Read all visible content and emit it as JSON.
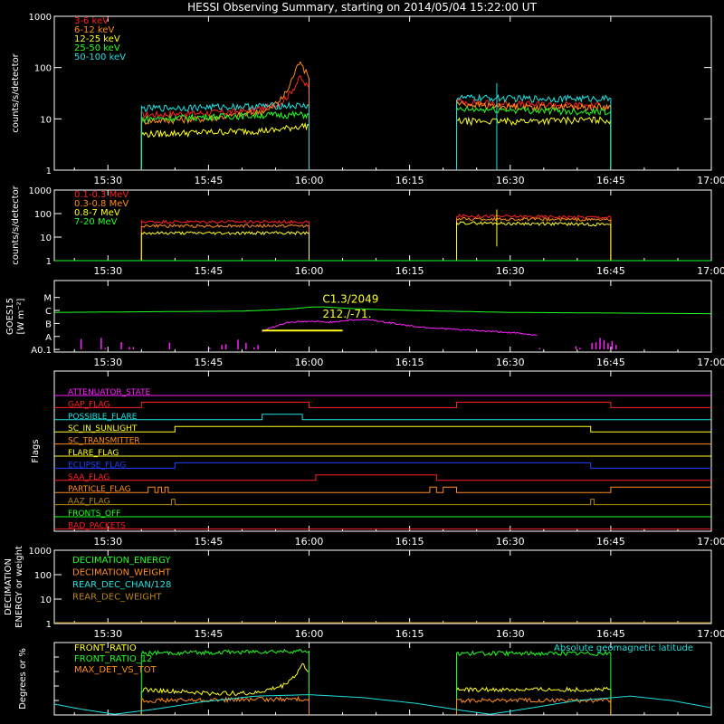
{
  "title": "HESSI Observing Summary, starting on 2014/05/04 15:22:00 UT",
  "time_axis": {
    "start_minutes": 922,
    "end_minutes": 1020,
    "tick_labels": [
      "15:30",
      "15:45",
      "16:00",
      "16:15",
      "16:30",
      "16:45",
      "17:00"
    ],
    "tick_minutes": [
      930,
      945,
      960,
      975,
      990,
      1005,
      1020
    ]
  },
  "chart_data": [
    {
      "id": "panel_lo",
      "type": "line",
      "ylabel": "counts/s/detector",
      "ylim": [
        1,
        1000
      ],
      "log": true,
      "ytick_labels": [
        "1",
        "10",
        "100",
        "1000"
      ],
      "ytick_values": [
        1,
        10,
        100,
        1000
      ],
      "legend_position": "top-left",
      "series": [
        {
          "name": "3-6 keV",
          "color": "#ff2020",
          "segments": [
            [
              [
                935.0,
                12
              ],
              [
                944,
                13
              ],
              [
                950,
                14
              ],
              [
                954,
                17
              ],
              [
                956,
                22
              ],
              [
                957,
                30
              ],
              [
                958,
                45
              ],
              [
                958.7,
                65
              ],
              [
                959.2,
                50
              ],
              [
                960,
                40
              ]
            ],
            [
              [
                982,
                22
              ],
              [
                987,
                20
              ],
              [
                995,
                19
              ],
              [
                1005,
                18
              ]
            ]
          ]
        },
        {
          "name": "6-12 keV",
          "color": "#ff8c1a",
          "segments": [
            [
              [
                935.0,
                9
              ],
              [
                944,
                10
              ],
              [
                950,
                12
              ],
              [
                954,
                15
              ],
              [
                956,
                25
              ],
              [
                957,
                40
              ],
              [
                958,
                85
              ],
              [
                958.7,
                145
              ],
              [
                959.3,
                90
              ],
              [
                960,
                60
              ]
            ],
            [
              [
                982,
                20
              ],
              [
                987,
                18
              ],
              [
                995,
                17
              ],
              [
                1005,
                17
              ]
            ]
          ]
        },
        {
          "name": "12-25 keV",
          "color": "#ffff20",
          "segments": [
            [
              [
                935.0,
                5
              ],
              [
                945,
                5.5
              ],
              [
                955,
                6
              ],
              [
                958,
                7
              ],
              [
                960,
                7.5
              ]
            ],
            [
              [
                982,
                9
              ],
              [
                990,
                9
              ],
              [
                1000,
                9.5
              ],
              [
                1005,
                9.5
              ]
            ]
          ]
        },
        {
          "name": "25-50 keV",
          "color": "#20ff20",
          "segments": [
            [
              [
                935.0,
                10
              ],
              [
                945,
                11
              ],
              [
                955,
                12
              ],
              [
                960,
                12
              ]
            ],
            [
              [
                982,
                15
              ],
              [
                990,
                15
              ],
              [
                1000,
                14
              ],
              [
                1005,
                14
              ]
            ]
          ]
        },
        {
          "name": "50-100 keV",
          "color": "#20e0e0",
          "segments": [
            [
              [
                935.0,
                16
              ],
              [
                945,
                17
              ],
              [
                955,
                18
              ],
              [
                960,
                18
              ]
            ],
            [
              [
                982,
                26
              ],
              [
                990,
                25
              ],
              [
                1000,
                25
              ],
              [
                1005,
                25
              ]
            ]
          ]
        }
      ]
    },
    {
      "id": "panel_hi",
      "type": "line",
      "ylabel": "counts/s/detector",
      "ylim": [
        1,
        1000
      ],
      "log": true,
      "ytick_labels": [
        "1",
        "10",
        "100",
        "1000"
      ],
      "ytick_values": [
        1,
        10,
        100,
        1000
      ],
      "legend_position": "top-left",
      "series": [
        {
          "name": "0.1-0.3 MeV",
          "color": "#ff2020",
          "segments": [
            [
              [
                935.0,
                45
              ],
              [
                960,
                45
              ]
            ],
            [
              [
                982,
                80
              ],
              [
                1005,
                70
              ]
            ]
          ]
        },
        {
          "name": "0.3-0.8 MeV",
          "color": "#ff8c1a",
          "segments": [
            [
              [
                935.0,
                30
              ],
              [
                960,
                30
              ]
            ],
            [
              [
                982,
                60
              ],
              [
                1005,
                55
              ]
            ]
          ]
        },
        {
          "name": "0.8-7 MeV",
          "color": "#ffff20",
          "segments": [
            [
              [
                935.0,
                15
              ],
              [
                960,
                15
              ]
            ],
            [
              [
                982,
                40
              ],
              [
                1005,
                35
              ]
            ]
          ]
        },
        {
          "name": "7-20 MeV",
          "color": "#20ff20",
          "segments": [
            [
              [
                922,
                1
              ],
              [
                1020,
                1
              ]
            ]
          ]
        }
      ]
    },
    {
      "id": "panel_goes",
      "type": "line",
      "ylabel": "GOES15",
      "yunits": "[W m⁻²]",
      "ylim": [
        -0.2,
        5.3
      ],
      "ytick_labels": [
        "A0.1",
        "A",
        "B",
        "C",
        "M"
      ],
      "ytick_values": [
        0,
        1,
        2,
        3,
        4
      ],
      "series": [
        {
          "name": "",
          "color": "#20ff20",
          "segments": [
            [
              [
                922,
                2.85
              ],
              [
                950,
                2.95
              ],
              [
                955,
                3.05
              ],
              [
                958,
                3.15
              ],
              [
                960,
                3.25
              ],
              [
                962,
                3.28
              ],
              [
                966,
                3.15
              ],
              [
                975,
                3.0
              ],
              [
                990,
                2.85
              ],
              [
                1005,
                2.8
              ],
              [
                1020,
                2.75
              ]
            ]
          ]
        },
        {
          "name": "",
          "color": "#ff20ff",
          "segments": [
            [
              [
                953,
                1.4
              ],
              [
                955,
                1.8
              ],
              [
                957,
                2.1
              ],
              [
                960,
                2.15
              ],
              [
                963,
                2.1
              ],
              [
                966,
                2.25
              ],
              [
                969,
                2.3
              ],
              [
                972,
                2.05
              ],
              [
                976,
                1.75
              ],
              [
                980,
                1.6
              ],
              [
                985,
                1.45
              ],
              [
                990,
                1.3
              ],
              [
                994,
                1.1
              ]
            ]
          ]
        }
      ],
      "annotations": [
        {
          "text": "C1.3/2049",
          "x": 962,
          "y": 3.6,
          "color": "#ffff20"
        },
        {
          "text": "212./-71.",
          "x": 962,
          "y": 2.45,
          "color": "#ffff20"
        }
      ],
      "highlight_segment": {
        "x": [
          953,
          965
        ],
        "y": 1.45,
        "color": "#ffff20"
      }
    },
    {
      "id": "panel_flags",
      "type": "line",
      "ylabel": "Flags",
      "series": [
        {
          "name": "ATTENUATOR_STATE",
          "color": "#ff20ff",
          "toggles": []
        },
        {
          "name": "GAP_FLAG",
          "color": "#ff2020",
          "toggles": [
            935.0,
            960,
            982,
            1005
          ]
        },
        {
          "name": "POSSIBLE_FLARE",
          "color": "#20e0e0",
          "toggles": [
            953,
            959
          ]
        },
        {
          "name": "SC_IN_SUNLIGHT",
          "color": "#ffff20",
          "toggles": [
            940,
            1002
          ]
        },
        {
          "name": "SC_TRANSMITTER",
          "color": "#ff8c1a",
          "toggles": []
        },
        {
          "name": "FLARE_FLAG",
          "color": "#ffff20",
          "toggles": []
        },
        {
          "name": "ECLIPSE_FLAG",
          "color": "#2040ff",
          "toggles": [
            940,
            1002
          ]
        },
        {
          "name": "SAA_FLAG",
          "color": "#ff2020",
          "toggles": [
            961,
            979
          ]
        },
        {
          "name": "PARTICLE_FLAG",
          "color": "#ff8c1a",
          "toggles": [
            936,
            937,
            937.5,
            938,
            938.5,
            939,
            978,
            979,
            980,
            982,
            1005
          ]
        },
        {
          "name": "AAZ_FLAG",
          "color": "#b8860b",
          "toggles": [
            939.5,
            940,
            1002,
            1002.5
          ]
        },
        {
          "name": "FRONTS_OFF",
          "color": "#20ff20",
          "toggles": []
        },
        {
          "name": "BAD_PACKETS",
          "color": "#ff2020",
          "toggles": []
        }
      ]
    },
    {
      "id": "panel_decim",
      "type": "line",
      "ylabel": "DECIMATION ENERGY or weight",
      "ylim": [
        1,
        1000
      ],
      "log": true,
      "ytick_labels": [
        "1",
        "10",
        "100",
        "1000"
      ],
      "ytick_values": [
        1,
        10,
        100,
        1000
      ],
      "series": [
        {
          "name": "DECIMATION_ENERGY",
          "color": "#20ff20"
        },
        {
          "name": "DECIMATION_WEIGHT",
          "color": "#ff8c1a"
        },
        {
          "name": "REAR_DEC_CHAN/128",
          "color": "#20e0e0"
        },
        {
          "name": "REAR_DEC_WEIGHT",
          "color": "#b8860b"
        }
      ]
    },
    {
      "id": "panel_ratio",
      "type": "line",
      "ylabel": "Degrees or %",
      "ylim": [
        0,
        100
      ],
      "legend_position": "top-left",
      "right_label": "Absolute geomagnetic latitude",
      "series": [
        {
          "name": "FRONT_RATIO",
          "color": "#ffff20",
          "segments": [
            [
              [
                935.0,
                35
              ],
              [
                945,
                30
              ],
              [
                952,
                30
              ],
              [
                956,
                40
              ],
              [
                958,
                55
              ],
              [
                959,
                70
              ],
              [
                960,
                60
              ]
            ],
            [
              [
                982,
                35
              ],
              [
                995,
                35
              ],
              [
                1005,
                35
              ]
            ]
          ]
        },
        {
          "name": "FRONT_RATIO_12",
          "color": "#20ff20",
          "segments": [
            [
              [
                935.0,
                85
              ],
              [
                960,
                88
              ]
            ],
            [
              [
                982,
                85
              ],
              [
                1005,
                85
              ]
            ]
          ]
        },
        {
          "name": "MAX_DET_VS_TOT",
          "color": "#ff8c1a",
          "segments": [
            [
              [
                935.0,
                20
              ],
              [
                960,
                22
              ]
            ],
            [
              [
                982,
                20
              ],
              [
                1005,
                20
              ]
            ]
          ]
        },
        {
          "name": "",
          "color": "#20e0e0",
          "segments": [
            [
              [
                922,
                15
              ],
              [
                926,
                8
              ],
              [
                931,
                1
              ],
              [
                937,
                8
              ],
              [
                944,
                18
              ],
              [
                952,
                26
              ],
              [
                960,
                28
              ],
              [
                968,
                24
              ],
              [
                976,
                16
              ],
              [
                983,
                6
              ],
              [
                987,
                1
              ],
              [
                992,
                8
              ],
              [
                1000,
                20
              ],
              [
                1008,
                26
              ],
              [
                1014,
                20
              ],
              [
                1020,
                10
              ]
            ]
          ]
        }
      ]
    }
  ]
}
